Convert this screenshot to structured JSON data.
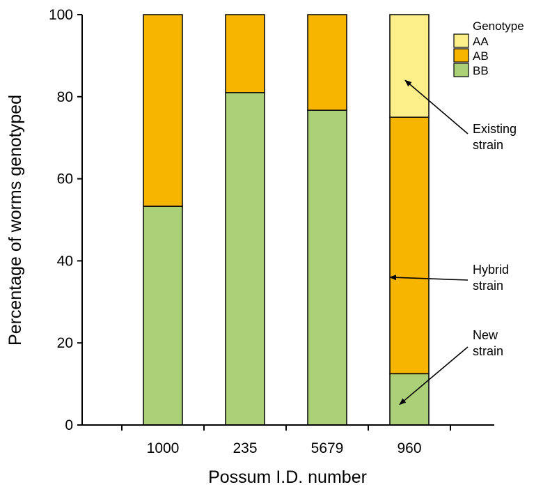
{
  "chart_data": {
    "type": "bar",
    "stacked": true,
    "categories": [
      "1000",
      "235",
      "5679",
      "960"
    ],
    "series": [
      {
        "name": "BB",
        "color": "#acd077",
        "values": [
          53.3,
          81.0,
          76.7,
          12.5
        ]
      },
      {
        "name": "AB",
        "color": "#f7b500",
        "values": [
          46.7,
          19.0,
          23.3,
          62.5
        ]
      },
      {
        "name": "AA",
        "color": "#fcef8a",
        "values": [
          0,
          0,
          0,
          25.0
        ]
      }
    ],
    "legend_order": [
      "AA",
      "AB",
      "BB"
    ],
    "legend_title": "Genotype",
    "legend_position": "top-right",
    "xlabel": "Possum I.D. number",
    "ylabel": "Percentage of worms genotyped",
    "ylim": [
      0,
      100
    ],
    "yticks": [
      0,
      20,
      40,
      60,
      80,
      100
    ],
    "grid": false,
    "annotations": [
      {
        "lines": [
          "Existing",
          "strain"
        ],
        "points_to": {
          "category": "960",
          "series": "AA",
          "y": 84
        }
      },
      {
        "lines": [
          "Hybrid",
          "strain"
        ],
        "points_to": {
          "category": "960",
          "series": "AB",
          "y": 36
        }
      },
      {
        "lines": [
          "New",
          "strain"
        ],
        "points_to": {
          "category": "960",
          "series": "BB",
          "y": 5
        }
      }
    ]
  }
}
